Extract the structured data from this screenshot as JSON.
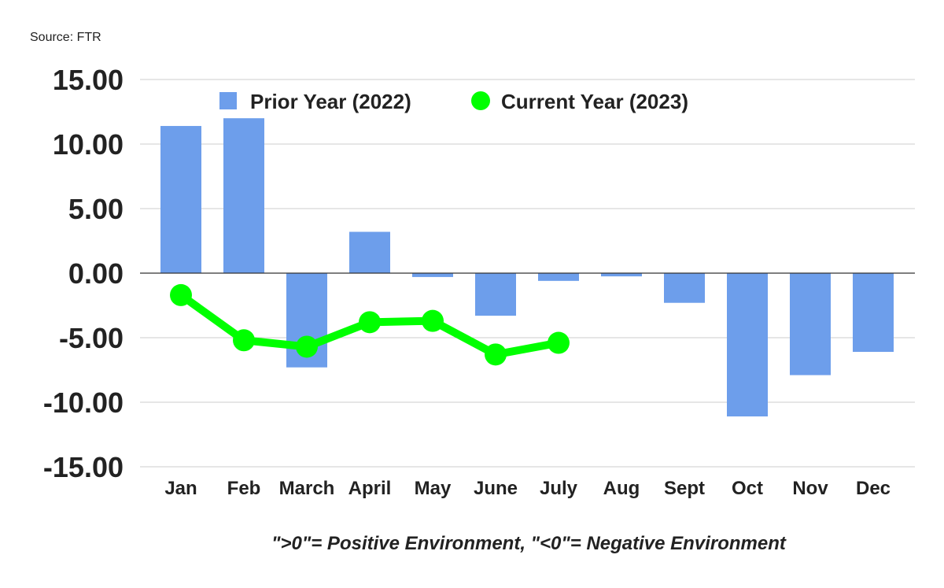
{
  "chart_data": {
    "type": "bar",
    "source": "Source: FTR",
    "footnote": "\">0\"= Positive Environment, \"<0\"= Negative Environment",
    "categories": [
      "Jan",
      "Feb",
      "March",
      "April",
      "May",
      "June",
      "July",
      "Aug",
      "Sept",
      "Oct",
      "Nov",
      "Dec"
    ],
    "ylim": [
      -15,
      15
    ],
    "yticks": [
      "15.00",
      "10.00",
      "5.00",
      "0.00",
      "-5.00",
      "-10.00",
      "-15.00"
    ],
    "ytick_values": [
      15,
      10,
      5,
      0,
      -5,
      -10,
      -15
    ],
    "grid": true,
    "legend_placement": "top",
    "series": [
      {
        "name": "Prior Year (2022)",
        "type": "bar",
        "color": "#6d9eeb",
        "values": [
          11.4,
          12.0,
          -7.3,
          3.2,
          -0.3,
          -3.3,
          -0.6,
          -0.25,
          -2.3,
          -11.1,
          -7.9,
          -6.1
        ]
      },
      {
        "name": "Current Year (2023)",
        "type": "line",
        "color": "#00ff00",
        "values": [
          -1.7,
          -5.2,
          -5.7,
          -3.8,
          -3.7,
          -6.3,
          -5.4,
          null,
          null,
          null,
          null,
          null
        ]
      }
    ]
  }
}
